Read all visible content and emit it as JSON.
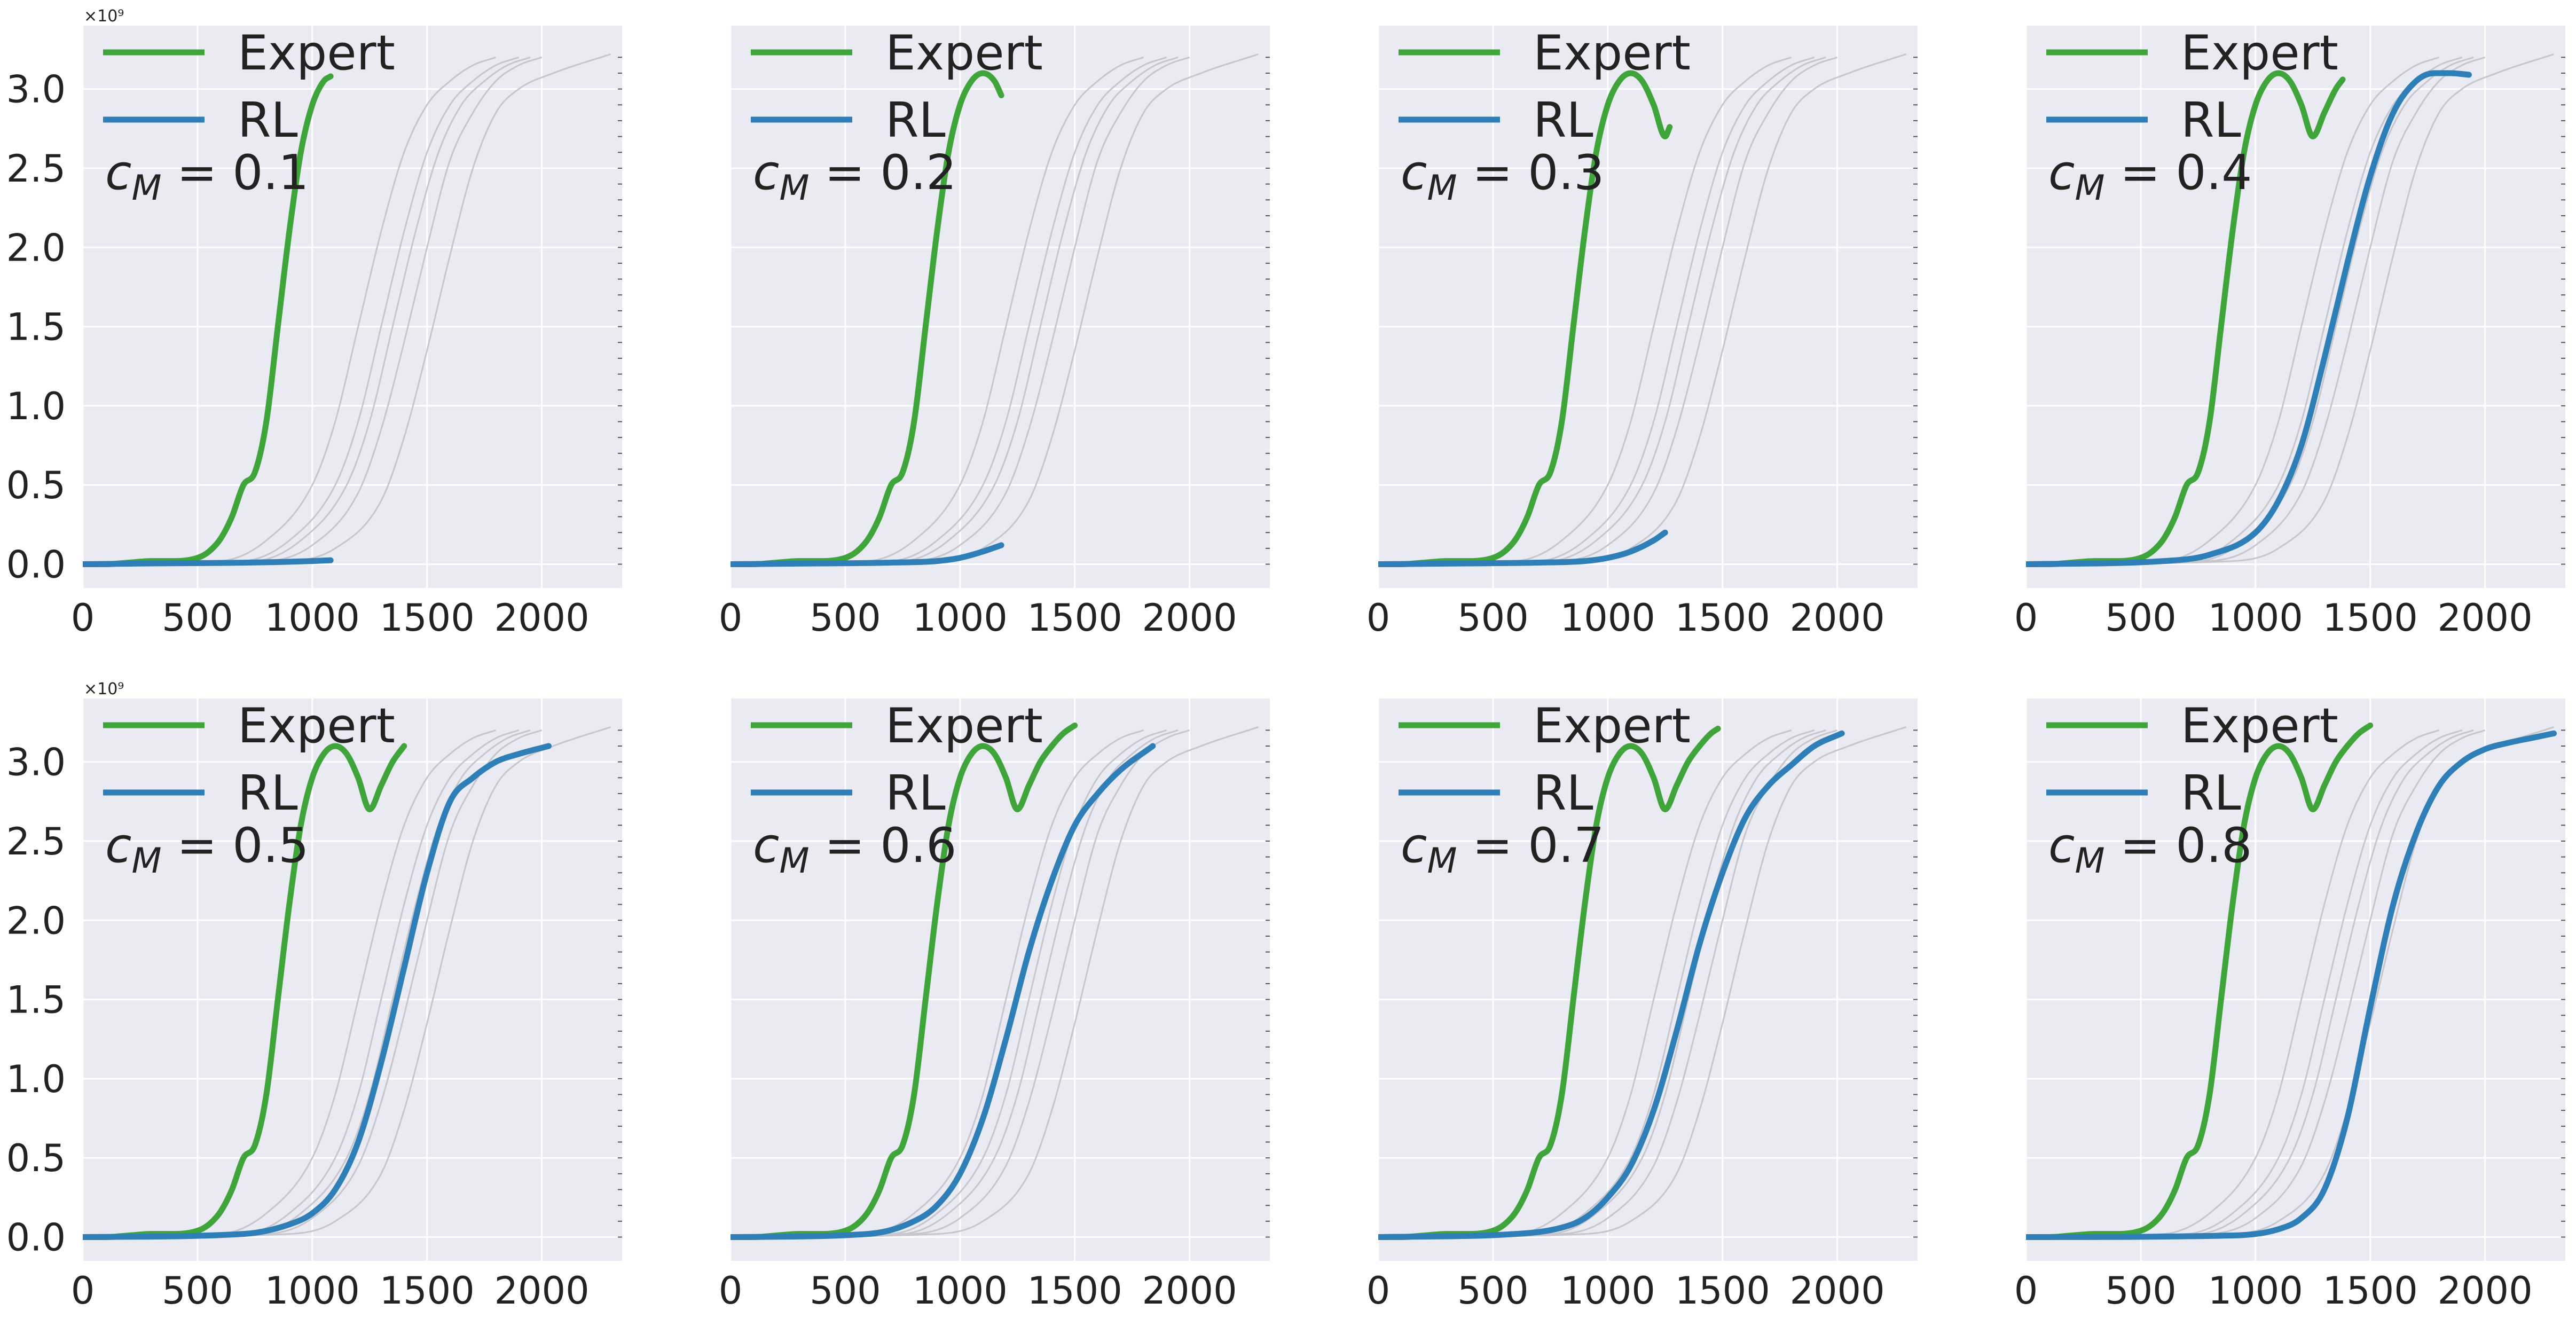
{
  "colors": {
    "expert": "#3fa43a",
    "rl": "#2e7fb8",
    "background_curves": "#c6c6cc",
    "panel_bg": "#eaeaf2",
    "grid": "#ffffff"
  },
  "chart_data": {
    "type": "line",
    "layout": "2 rows x 4 columns of subplots",
    "shared_y_axis_per_row": true,
    "xlim": [
      0,
      2350
    ],
    "ylim": [
      -0.15,
      3.4
    ],
    "x_ticks": [
      0,
      500,
      1000,
      1500,
      2000
    ],
    "y_ticks": [
      0.0,
      0.5,
      1.0,
      1.5,
      2.0,
      2.5,
      3.0
    ],
    "y_ticklabels": [
      "0.0",
      "0.5",
      "1.0",
      "1.5",
      "2.0",
      "2.5",
      "3.0"
    ],
    "y_exponent_label": "×10⁹",
    "legend": [
      "Expert",
      "RL"
    ],
    "legend_position": "top-left",
    "grid": true,
    "expert_full": {
      "x": [
        0,
        100,
        200,
        300,
        400,
        500,
        550,
        600,
        650,
        700,
        750,
        800,
        850,
        900,
        950,
        1000,
        1050,
        1100,
        1150,
        1200,
        1250,
        1300,
        1350,
        1400,
        1450,
        1500
      ],
      "y": [
        0.0,
        0.0,
        0.01,
        0.02,
        0.02,
        0.04,
        0.08,
        0.16,
        0.3,
        0.5,
        0.58,
        0.9,
        1.5,
        2.1,
        2.6,
        2.9,
        3.05,
        3.1,
        3.05,
        2.9,
        2.7,
        2.85,
        3.0,
        3.1,
        3.18,
        3.23
      ]
    },
    "background_curves": [
      {
        "x": [
          0,
          600,
          800,
          1000,
          1100,
          1200,
          1300,
          1400,
          1500,
          1600,
          1700,
          1800
        ],
        "y": [
          0.0,
          0.02,
          0.15,
          0.5,
          0.9,
          1.5,
          2.1,
          2.6,
          2.9,
          3.05,
          3.15,
          3.2
        ]
      },
      {
        "x": [
          0,
          700,
          900,
          1100,
          1200,
          1300,
          1400,
          1500,
          1600,
          1700,
          1800,
          1900
        ],
        "y": [
          0.0,
          0.02,
          0.15,
          0.5,
          0.9,
          1.5,
          2.1,
          2.6,
          2.9,
          3.05,
          3.15,
          3.2
        ]
      },
      {
        "x": [
          0,
          750,
          950,
          1150,
          1250,
          1350,
          1450,
          1550,
          1650,
          1750,
          1850,
          1950
        ],
        "y": [
          0.0,
          0.02,
          0.15,
          0.5,
          0.9,
          1.5,
          2.1,
          2.6,
          2.9,
          3.05,
          3.15,
          3.2
        ]
      },
      {
        "x": [
          0,
          800,
          1000,
          1200,
          1300,
          1400,
          1500,
          1600,
          1700,
          1800,
          1900,
          2000
        ],
        "y": [
          0.0,
          0.02,
          0.12,
          0.45,
          0.85,
          1.4,
          2.0,
          2.55,
          2.85,
          3.05,
          3.15,
          3.2
        ]
      },
      {
        "x": [
          0,
          900,
          1100,
          1300,
          1400,
          1500,
          1600,
          1700,
          1800,
          1900,
          2050,
          2300
        ],
        "y": [
          0.0,
          0.02,
          0.1,
          0.4,
          0.8,
          1.35,
          1.95,
          2.5,
          2.85,
          3.0,
          3.1,
          3.22
        ]
      }
    ],
    "panels": [
      {
        "label": "c_M = 0.1",
        "row": 0,
        "col": 0,
        "expert_xmax": 1080,
        "rl": {
          "x": [
            0,
            300,
            600,
            800,
            1000,
            1080
          ],
          "y": [
            0.0,
            0.005,
            0.008,
            0.012,
            0.02,
            0.025
          ]
        }
      },
      {
        "label": "c_M = 0.2",
        "row": 0,
        "col": 1,
        "expert_xmax": 1180,
        "rl": {
          "x": [
            0,
            400,
            700,
            900,
            1000,
            1100,
            1180
          ],
          "y": [
            0.0,
            0.005,
            0.01,
            0.02,
            0.04,
            0.08,
            0.12
          ]
        }
      },
      {
        "label": "c_M = 0.3",
        "row": 0,
        "col": 2,
        "expert_xmax": 1270,
        "rl": {
          "x": [
            0,
            400,
            700,
            900,
            1000,
            1100,
            1200,
            1250
          ],
          "y": [
            0.0,
            0.005,
            0.01,
            0.02,
            0.04,
            0.08,
            0.15,
            0.2
          ]
        }
      },
      {
        "label": "c_M = 0.4",
        "row": 0,
        "col": 3,
        "expert_xmax": 1380,
        "rl": {
          "x": [
            0,
            600,
            800,
            1000,
            1100,
            1200,
            1300,
            1400,
            1500,
            1600,
            1700,
            1780,
            1850,
            1930
          ],
          "y": [
            0.0,
            0.02,
            0.06,
            0.2,
            0.4,
            0.75,
            1.3,
            1.9,
            2.45,
            2.85,
            3.05,
            3.1,
            3.1,
            3.09
          ]
        }
      },
      {
        "label": "c_M = 0.5",
        "row": 1,
        "col": 0,
        "expert_xmax": 1400,
        "rl": {
          "x": [
            0,
            700,
            900,
            1000,
            1100,
            1200,
            1300,
            1400,
            1500,
            1600,
            1700,
            1800,
            1900,
            2030
          ],
          "y": [
            0.0,
            0.02,
            0.08,
            0.15,
            0.3,
            0.6,
            1.1,
            1.7,
            2.3,
            2.75,
            2.9,
            3.0,
            3.05,
            3.1
          ]
        }
      },
      {
        "label": "c_M = 0.6",
        "row": 1,
        "col": 1,
        "expert_xmax": 1520,
        "rl": {
          "x": [
            0,
            600,
            800,
            900,
            1000,
            1100,
            1200,
            1300,
            1400,
            1500,
            1600,
            1700,
            1840
          ],
          "y": [
            0.0,
            0.02,
            0.1,
            0.2,
            0.4,
            0.75,
            1.25,
            1.8,
            2.25,
            2.6,
            2.8,
            2.95,
            3.1
          ]
        }
      },
      {
        "label": "c_M = 0.7",
        "row": 1,
        "col": 2,
        "expert_xmax": 1480,
        "rl": {
          "x": [
            0,
            600,
            800,
            900,
            1000,
            1100,
            1200,
            1300,
            1400,
            1500,
            1600,
            1700,
            1800,
            1900,
            2020
          ],
          "y": [
            0.0,
            0.02,
            0.06,
            0.12,
            0.25,
            0.45,
            0.8,
            1.3,
            1.85,
            2.3,
            2.65,
            2.85,
            2.98,
            3.1,
            3.18
          ]
        }
      },
      {
        "label": "c_M = 0.8",
        "row": 1,
        "col": 3,
        "expert_xmax": 1500,
        "rl": {
          "x": [
            0,
            900,
            1100,
            1200,
            1300,
            1400,
            1500,
            1600,
            1700,
            1800,
            1900,
            2000,
            2100,
            2200,
            2300
          ],
          "y": [
            0.0,
            0.01,
            0.05,
            0.12,
            0.3,
            0.75,
            1.45,
            2.1,
            2.55,
            2.85,
            3.0,
            3.08,
            3.12,
            3.15,
            3.18
          ]
        }
      }
    ]
  }
}
